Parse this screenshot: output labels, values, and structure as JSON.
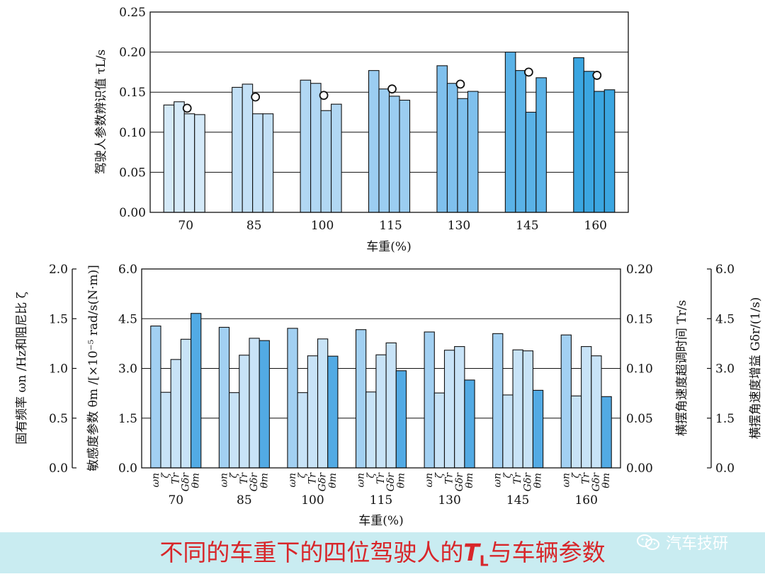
{
  "chart_data": [
    {
      "type": "bar",
      "ylabel": "驾驶人参数辨识值 τL/s",
      "xlabel": "车重(%)",
      "categories": [
        "70",
        "85",
        "100",
        "115",
        "130",
        "145",
        "160"
      ],
      "ylim": [
        0,
        0.25
      ],
      "yticks": [
        "0.00",
        "0.05",
        "0.10",
        "0.15",
        "0.20",
        "0.25"
      ],
      "series_count": 4,
      "values": [
        [
          0.134,
          0.138,
          0.123,
          0.122
        ],
        [
          0.156,
          0.16,
          0.123,
          0.123
        ],
        [
          0.165,
          0.161,
          0.127,
          0.135
        ],
        [
          0.177,
          0.154,
          0.145,
          0.14
        ],
        [
          0.183,
          0.161,
          0.142,
          0.151
        ],
        [
          0.2,
          0.177,
          0.125,
          0.168
        ],
        [
          0.193,
          0.176,
          0.151,
          0.153
        ]
      ],
      "mean_markers": [
        0.13,
        0.144,
        0.146,
        0.154,
        0.16,
        0.175,
        0.171
      ],
      "group_colors": [
        "#d4e9f8",
        "#c3e0f6",
        "#b1d7f3",
        "#9bcdf1",
        "#7fc0ed",
        "#5ab2e7",
        "#3ba6e1"
      ],
      "grid": "horizontal"
    },
    {
      "type": "bar",
      "xlabel": "车重(%)",
      "categories": [
        "70",
        "85",
        "100",
        "115",
        "130",
        "145",
        "160"
      ],
      "parameters": [
        "ωn",
        "ζ",
        "Tr",
        "Gδr",
        "θm"
      ],
      "axes": {
        "left_outer": {
          "label": "固有频率 ωn /Hz和阻尼比 ζ",
          "ylim": [
            0,
            2.0
          ],
          "ticks": [
            "0.0",
            "0.5",
            "1.0",
            "1.5",
            "2.0"
          ]
        },
        "left_inner": {
          "label": "敏感度参数 θm /[×10⁻⁵ rad/s(N·m)]",
          "ylim": [
            0,
            6.0
          ],
          "ticks": [
            "0.0",
            "1.5",
            "3.0",
            "4.5",
            "6.0"
          ]
        },
        "right_inner": {
          "label": "横摆角速度超调时间 Tr/s",
          "ylim": [
            0,
            0.2
          ],
          "ticks": [
            "0.00",
            "0.05",
            "0.10",
            "0.15",
            "0.20"
          ]
        },
        "right_outer": {
          "label": "横摆角速度增益 Gδr/(1/s)",
          "ylim": [
            0,
            6.0
          ],
          "ticks": [
            "0.0",
            "1.5",
            "3.0",
            "4.5",
            "6.0"
          ]
        }
      },
      "values_on_grid_scale": [
        [
          4.28,
          2.28,
          3.27,
          3.88,
          4.66
        ],
        [
          4.24,
          2.27,
          3.4,
          3.91,
          3.84
        ],
        [
          4.21,
          2.27,
          3.38,
          3.89,
          3.37
        ],
        [
          4.17,
          2.29,
          3.41,
          3.77,
          2.93
        ],
        [
          4.1,
          2.26,
          3.55,
          3.66,
          2.65
        ],
        [
          4.05,
          2.2,
          3.56,
          3.53,
          2.34
        ],
        [
          4.01,
          2.17,
          3.66,
          3.38,
          2.15
        ]
      ],
      "bar_colors": [
        "#a2d0f2",
        "#c8e3f7",
        "#c8e3f7",
        "#c8e3f7",
        "#52aae4"
      ],
      "grid": "horizontal"
    }
  ],
  "caption": {
    "before": "不同的车重下的四位驾驶人的",
    "tl_symbol": "T",
    "tl_sub": "L",
    "after": "与车辆参数"
  },
  "watermark": {
    "text": "汽车技研",
    "icon": "wechat-icon"
  }
}
